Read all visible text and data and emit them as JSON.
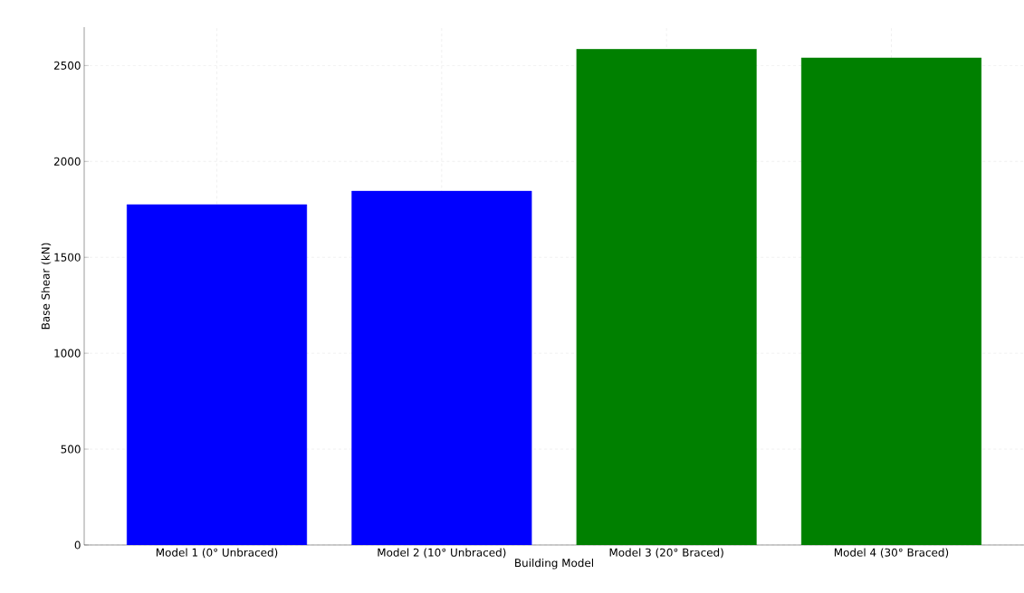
{
  "chart_data": {
    "type": "bar",
    "xlabel": "Building Model",
    "ylabel": "Base Shear (kN)",
    "categories": [
      "Model 1 (0° Unbraced)",
      "Model 2 (10° Unbraced)",
      "Model 3 (20° Braced)",
      "Model 4 (30° Braced)"
    ],
    "values": [
      1775,
      1845,
      2585,
      2540
    ],
    "colors": [
      "#0000ff",
      "#0000ff",
      "#008000",
      "#008000"
    ],
    "ylim": [
      0,
      2700
    ],
    "yticks": [
      0,
      500,
      1000,
      1500,
      2000,
      2500
    ],
    "grid": true
  }
}
